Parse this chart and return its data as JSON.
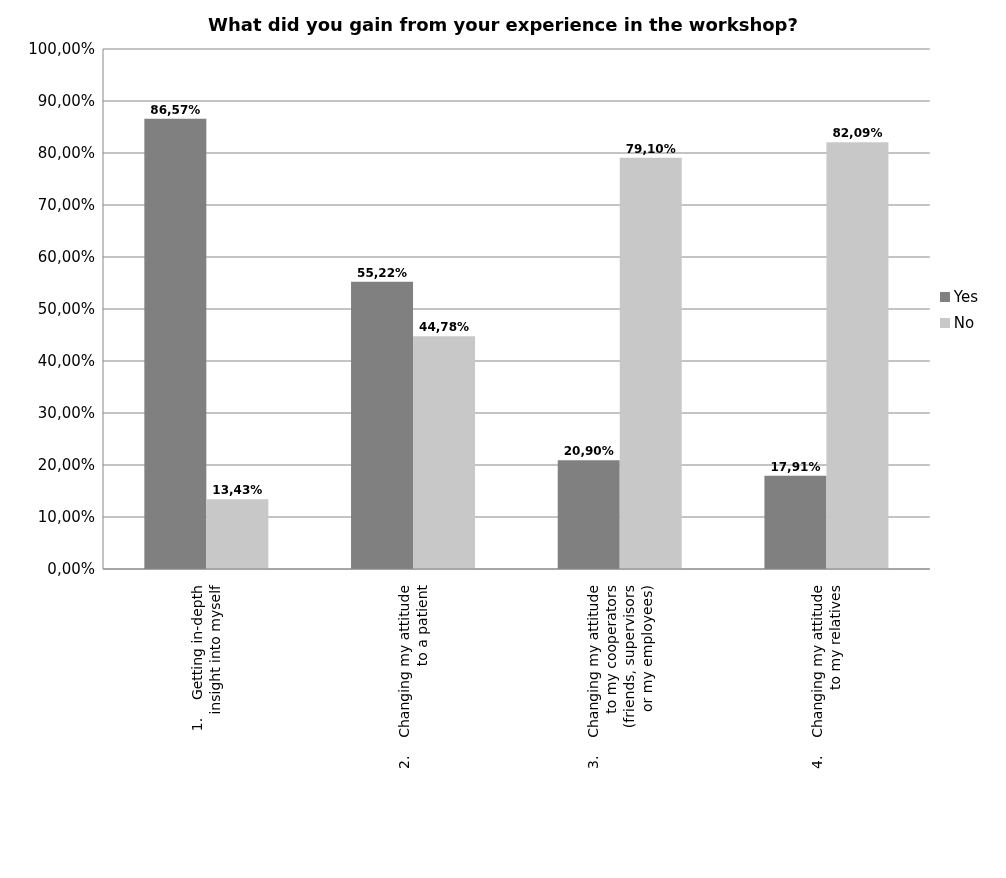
{
  "chart_data": {
    "type": "bar",
    "title": "What did you gain from your experience in the workshop?",
    "categories": [
      "1.    Getting in-depth\ninsight into myself",
      "2.    Changing my attitude\nto a patient",
      "3.    Changing my attitude\nto my cooperators\n(friends, supervisors\nor my employees)",
      "4.    Changing my attitude\nto my relatives"
    ],
    "series": [
      {
        "name": "Yes",
        "color": "#808080",
        "values": [
          86.57,
          55.22,
          20.9,
          17.91
        ],
        "value_labels": [
          "86,57%",
          "55,22%",
          "20,90%",
          "17,91%"
        ]
      },
      {
        "name": "No",
        "color": "#c8c8c8",
        "values": [
          13.43,
          44.78,
          79.1,
          82.09
        ],
        "value_labels": [
          "13,43%",
          "44,78%",
          "79,10%",
          "82,09%"
        ]
      }
    ],
    "ylim": [
      0,
      100
    ],
    "yticks": [
      {
        "value": 0,
        "label": "0,00%"
      },
      {
        "value": 10,
        "label": "10,00%"
      },
      {
        "value": 20,
        "label": "20,00%"
      },
      {
        "value": 30,
        "label": "30,00%"
      },
      {
        "value": 40,
        "label": "40,00%"
      },
      {
        "value": 50,
        "label": "50,00%"
      },
      {
        "value": 60,
        "label": "60,00%"
      },
      {
        "value": 70,
        "label": "70,00%"
      },
      {
        "value": 80,
        "label": "80,00%"
      },
      {
        "value": 90,
        "label": "90,00%"
      },
      {
        "value": 100,
        "label": "100,00%"
      }
    ],
    "grid": "y",
    "legend": "right"
  }
}
